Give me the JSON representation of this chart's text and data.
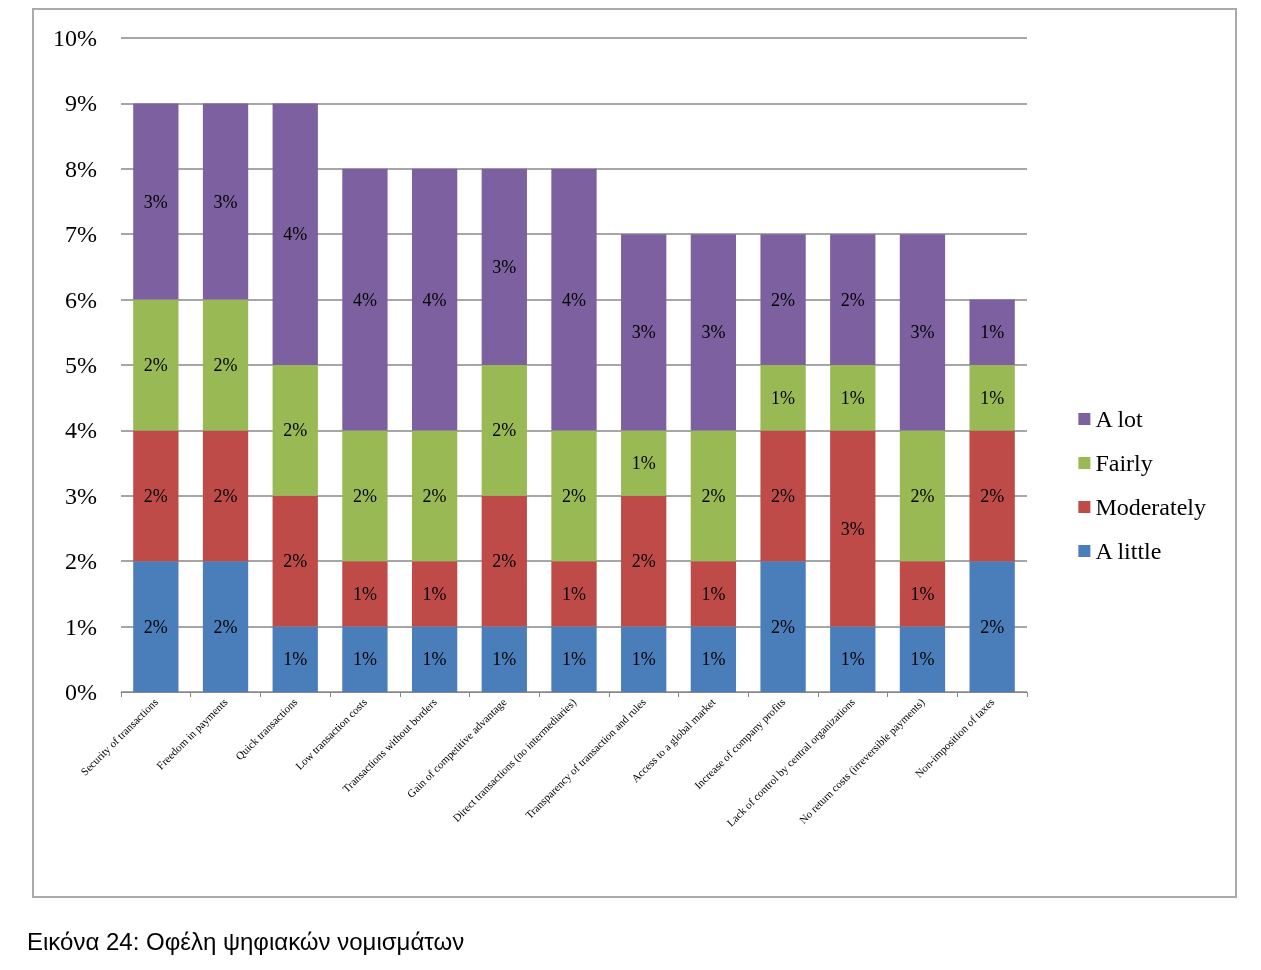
{
  "chart_data": {
    "type": "bar",
    "stacked": true,
    "categories": [
      "Security of transactions",
      "Freedom in payments",
      "Quick transactions",
      "Low transaction costs",
      "Transactions without borders",
      "Gain of competitive advantage",
      "Direct transactions (no intermediaries)",
      "Transparency of transaction and rules",
      "Access to a global market",
      "Increase of company profits",
      "Lack of control by central organizations",
      "No return costs (irreversible payments)",
      "Non-imposition of taxes"
    ],
    "series": [
      {
        "name": "A little",
        "color": "#4a7ebb",
        "values": [
          2,
          2,
          1,
          1,
          1,
          1,
          1,
          1,
          1,
          2,
          1,
          1,
          2
        ],
        "value_labels": [
          "2%",
          "2%",
          "1%",
          "1%",
          "1%",
          "1%",
          "1%",
          "1%",
          "1%",
          "2%",
          "1%",
          "1%",
          "2%"
        ]
      },
      {
        "name": "Moderately",
        "color": "#be4b48",
        "values": [
          2,
          2,
          2,
          1,
          1,
          2,
          1,
          2,
          1,
          2,
          3,
          1,
          2
        ],
        "value_labels": [
          "2%",
          "2%",
          "2%",
          "1%",
          "1%",
          "2%",
          "1%",
          "2%",
          "1%",
          "2%",
          "3%",
          "1%",
          "2%"
        ]
      },
      {
        "name": "Fairly",
        "color": "#98b954",
        "values": [
          2,
          2,
          2,
          2,
          2,
          2,
          2,
          1,
          2,
          1,
          1,
          2,
          1
        ],
        "value_labels": [
          "2%",
          "2%",
          "2%",
          "2%",
          "2%",
          "2%",
          "2%",
          "1%",
          "2%",
          "1%",
          "1%",
          "2%",
          "1%"
        ]
      },
      {
        "name": "A lot",
        "color": "#7d60a0",
        "values": [
          3,
          3,
          4,
          4,
          4,
          3,
          4,
          3,
          3,
          2,
          2,
          3,
          1
        ],
        "value_labels": [
          "3%",
          "3%",
          "4%",
          "4%",
          "4%",
          "3%",
          "4%",
          "3%",
          "3%",
          "2%",
          "2%",
          "3%",
          "1%"
        ]
      }
    ],
    "ylim": [
      0,
      10
    ],
    "yticks": [
      {
        "value": 0,
        "label": "0%"
      },
      {
        "value": 1,
        "label": "1%"
      },
      {
        "value": 2,
        "label": "2%"
      },
      {
        "value": 3,
        "label": "3%"
      },
      {
        "value": 4,
        "label": "4%"
      },
      {
        "value": 5,
        "label": "5%"
      },
      {
        "value": 6,
        "label": "6%"
      },
      {
        "value": 7,
        "label": "7%"
      },
      {
        "value": 8,
        "label": "8%"
      },
      {
        "value": 9,
        "label": "9%"
      },
      {
        "value": 10,
        "label": "10%"
      }
    ],
    "grid": "y",
    "legend": "right",
    "annotations": [
      "Εικόνα 24: Οφέλη ψηφιακών νομισμάτων"
    ]
  }
}
